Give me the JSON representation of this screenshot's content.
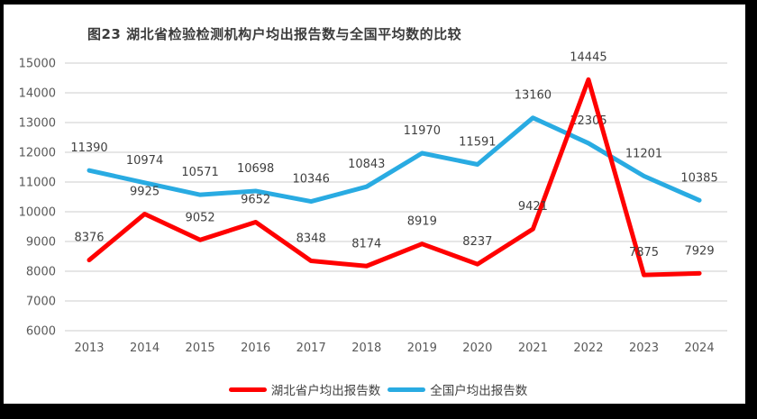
{
  "chart_data": {
    "type": "line",
    "title": "图23 湖北省检验检测机构户均出报告数与全国平均数的比较",
    "categories": [
      "2013",
      "2014",
      "2015",
      "2016",
      "2017",
      "2018",
      "2019",
      "2020",
      "2021",
      "2022",
      "2023",
      "2024"
    ],
    "series": [
      {
        "name": "湖北省户均出报告数",
        "color": "#ff0000",
        "values": [
          8376,
          9925,
          9052,
          9652,
          8348,
          8174,
          8919,
          8237,
          9421,
          14445,
          7875,
          7929
        ]
      },
      {
        "name": "全国户均出报告数",
        "color": "#29abe2",
        "values": [
          11390,
          10974,
          10571,
          10698,
          10346,
          10843,
          11970,
          11591,
          13160,
          12305,
          11201,
          10385
        ]
      }
    ],
    "y_ticks": [
      6000,
      7000,
      8000,
      9000,
      10000,
      11000,
      12000,
      13000,
      14000,
      15000
    ],
    "ylim": [
      6000,
      15000
    ],
    "xlabel": "",
    "ylabel": "",
    "grid": "horizontal",
    "gridline_color": "#e2e2e2",
    "data_labels": "above",
    "legend_position": "bottom",
    "frame_border_color": "#000000",
    "background_color": "#ffffff"
  }
}
